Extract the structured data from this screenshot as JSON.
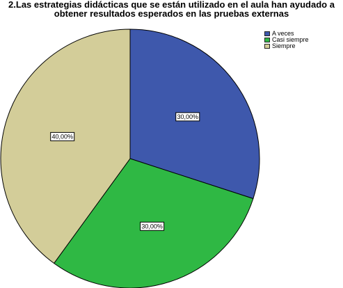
{
  "chart_data": {
    "type": "pie",
    "title_lines": [
      "2.Las estrategias didácticas que se están utilizado en el aula  han ayudado a",
      "obtener  resultados esperados en las pruebas externas"
    ],
    "categories": [
      "A veces",
      "Casi siempre",
      "Siempre"
    ],
    "values": [
      30,
      30,
      40
    ],
    "labels": [
      "30,00%",
      "30,00%",
      "40,00%"
    ],
    "colors": [
      "#3e58ac",
      "#2fb844",
      "#d3cd99"
    ],
    "legend_position": "top-right"
  }
}
